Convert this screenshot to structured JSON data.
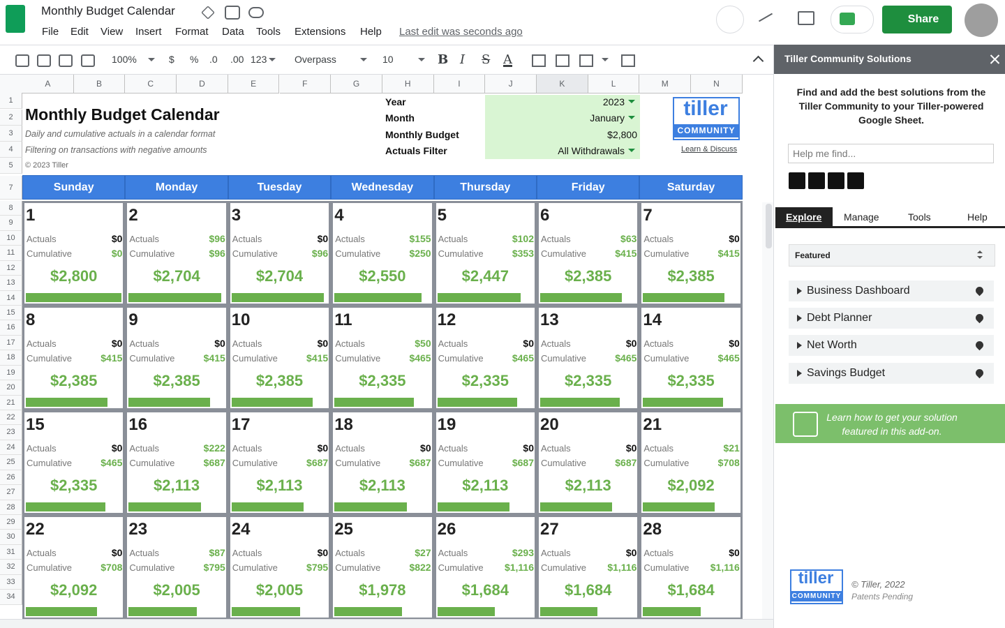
{
  "app": {
    "doc_title": "Monthly Budget Calendar",
    "menu": [
      "File",
      "Edit",
      "View",
      "Insert",
      "Format",
      "Data",
      "Tools",
      "Extensions",
      "Help"
    ],
    "last_edit": "Last edit was seconds ago",
    "share": "Share"
  },
  "toolbar": {
    "zoom": "100%",
    "currency": "$",
    "percent": "%",
    "dec_less": ".0",
    "dec_more": ".00",
    "number_format": "123",
    "font": "Overpass",
    "font_size": "10",
    "format_buttons": [
      "B",
      "I",
      "S",
      "A"
    ]
  },
  "grid": {
    "columns": [
      "A",
      "B",
      "C",
      "D",
      "E",
      "F",
      "G",
      "H",
      "I",
      "J",
      "K",
      "L",
      "M",
      "N"
    ],
    "rows": [
      "1",
      "2",
      "3",
      "4",
      "5",
      "7",
      "8",
      "9",
      "10",
      "11",
      "12",
      "13",
      "14",
      "15",
      "16",
      "17",
      "18",
      "19",
      "20",
      "21",
      "22",
      "23",
      "24",
      "25",
      "26",
      "27",
      "28",
      "29",
      "30",
      "31",
      "32",
      "33",
      "34"
    ]
  },
  "sheet": {
    "title": "Monthly Budget Calendar",
    "subtitle": "Daily and cumulative actuals in a calendar format",
    "filter_note": "Filtering on transactions with negative amounts",
    "copyright": "© 2023 Tiller",
    "params": [
      [
        "Year",
        "2023"
      ],
      [
        "Month",
        "January"
      ],
      [
        "Monthly Budget",
        "$2,800"
      ],
      [
        "Actuals Filter",
        "All Withdrawals"
      ]
    ],
    "logo": {
      "word": "tiller",
      "sub": "COMMUNITY"
    },
    "learn": "Learn & Discuss"
  },
  "calendar": {
    "weekdays": [
      "Sunday",
      "Monday",
      "Tuesday",
      "Wednesday",
      "Thursday",
      "Friday",
      "Saturday"
    ],
    "actuals_label": "Actuals",
    "cumulative_label": "Cumulative",
    "days": [
      [
        "1",
        "$0",
        "$0",
        "$2,800"
      ],
      [
        "2",
        "$96",
        "$96",
        "$2,704"
      ],
      [
        "3",
        "$0",
        "$96",
        "$2,704"
      ],
      [
        "4",
        "$155",
        "$250",
        "$2,550"
      ],
      [
        "5",
        "$102",
        "$353",
        "$2,447"
      ],
      [
        "6",
        "$63",
        "$415",
        "$2,385"
      ],
      [
        "7",
        "$0",
        "$415",
        "$2,385"
      ],
      [
        "8",
        "$0",
        "$415",
        "$2,385"
      ],
      [
        "9",
        "$0",
        "$415",
        "$2,385"
      ],
      [
        "10",
        "$0",
        "$415",
        "$2,385"
      ],
      [
        "11",
        "$50",
        "$465",
        "$2,335"
      ],
      [
        "12",
        "$0",
        "$465",
        "$2,335"
      ],
      [
        "13",
        "$0",
        "$465",
        "$2,335"
      ],
      [
        "14",
        "$0",
        "$465",
        "$2,335"
      ],
      [
        "15",
        "$0",
        "$465",
        "$2,335"
      ],
      [
        "16",
        "$222",
        "$687",
        "$2,113"
      ],
      [
        "17",
        "$0",
        "$687",
        "$2,113"
      ],
      [
        "18",
        "$0",
        "$687",
        "$2,113"
      ],
      [
        "19",
        "$0",
        "$687",
        "$2,113"
      ],
      [
        "20",
        "$0",
        "$687",
        "$2,113"
      ],
      [
        "21",
        "$21",
        "$708",
        "$2,092"
      ],
      [
        "22",
        "$0",
        "$708",
        "$2,092"
      ],
      [
        "23",
        "$87",
        "$795",
        "$2,005"
      ],
      [
        "24",
        "$0",
        "$795",
        "$2,005"
      ],
      [
        "25",
        "$27",
        "$822",
        "$1,978"
      ],
      [
        "26",
        "$293",
        "$1,116",
        "$1,684"
      ],
      [
        "27",
        "$0",
        "$1,116",
        "$1,684"
      ],
      [
        "28",
        "$0",
        "$1,116",
        "$1,684"
      ]
    ]
  },
  "panel": {
    "title": "Tiller Community Solutions",
    "intro": "Find and add the best solutions from the Tiller Community to your Tiller-powered Google Sheet.",
    "search_placeholder": "Help me find...",
    "tabs": [
      "Explore",
      "Manage",
      "Tools",
      "Help"
    ],
    "filter": "Featured",
    "items": [
      "Business Dashboard",
      "Debt Planner",
      "Net Worth",
      "Savings Budget"
    ],
    "banner": "Learn how to get your solution featured in this add-on.",
    "footer_logo": {
      "word": "tiller",
      "sub": "COMMUNITY"
    },
    "footer_copyright": "© Tiller, 2022",
    "footer_patents": "Patents Pending"
  }
}
